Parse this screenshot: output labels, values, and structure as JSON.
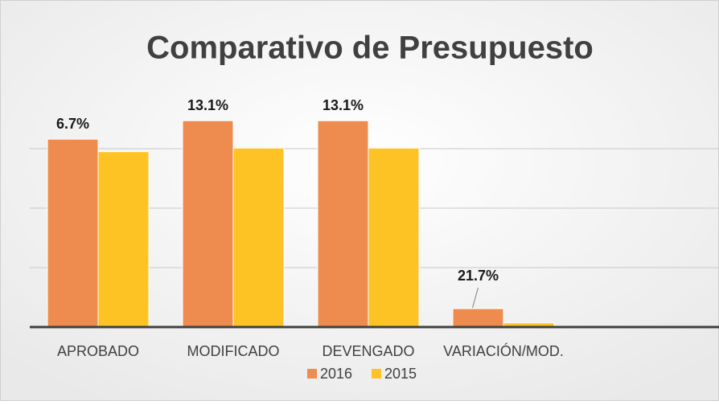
{
  "chart_data": {
    "type": "bar",
    "title": "Comparativo de Presupuesto",
    "categories": [
      "APROBADO",
      "MODIFICADO",
      "DEVENGADO",
      "VARIACIÓN/MOD."
    ],
    "series": [
      {
        "name": "2016",
        "color": "#ee8c4f",
        "values": [
          3.16,
          3.47,
          3.47,
          0.31
        ]
      },
      {
        "name": "2015",
        "color": "#fdc325",
        "values": [
          2.95,
          3.01,
          3.01,
          0.07
        ]
      }
    ],
    "annotations": [
      "6.7%",
      "13.1%",
      "13.1%",
      "21.7%"
    ],
    "ylim": [
      0,
      4
    ],
    "yticks": [
      0,
      1,
      2,
      3
    ],
    "grid": true,
    "legend": "bottom"
  }
}
